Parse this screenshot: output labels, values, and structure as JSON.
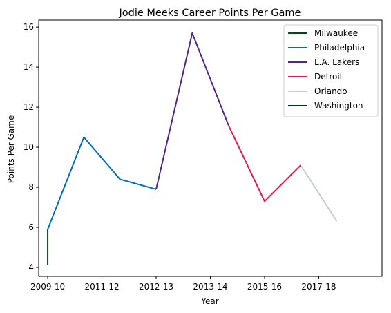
{
  "chart_data": {
    "type": "line",
    "title": "Jodie Meeks Career Points Per Game",
    "xlabel": "Year",
    "ylabel": "Points Per Game",
    "xlim": [
      -0.25,
      9.25
    ],
    "ylim": [
      3.55,
      16.35
    ],
    "x_ticks": [
      {
        "x": 0,
        "label": "2009-10"
      },
      {
        "x": 1.5,
        "label": "2011-12"
      },
      {
        "x": 3,
        "label": "2012-13"
      },
      {
        "x": 4.5,
        "label": "2013-14"
      },
      {
        "x": 6,
        "label": "2015-16"
      },
      {
        "x": 7.5,
        "label": "2017-18"
      }
    ],
    "y_ticks": [
      4,
      6,
      8,
      10,
      12,
      14,
      16
    ],
    "grid": false,
    "legend_position": "top-right",
    "series": [
      {
        "name": "Milwaukee",
        "color": "#00471b",
        "points": [
          [
            0,
            4.1
          ],
          [
            0,
            5.9
          ]
        ]
      },
      {
        "name": "Philadelphia",
        "color": "#006bb6",
        "points": [
          [
            0,
            5.9
          ],
          [
            1,
            10.5
          ],
          [
            2,
            8.4
          ],
          [
            3,
            7.9
          ]
        ]
      },
      {
        "name": "L.A. Lakers",
        "color": "#552583",
        "points": [
          [
            3,
            7.9
          ],
          [
            4,
            15.7
          ],
          [
            5,
            11.1
          ]
        ]
      },
      {
        "name": "Detroit",
        "color": "#e31950",
        "points": [
          [
            5,
            11.1
          ],
          [
            6,
            7.3
          ],
          [
            7,
            9.1
          ]
        ]
      },
      {
        "name": "Orlando",
        "color": "#c4ced4",
        "points": [
          [
            7,
            9.1
          ],
          [
            8,
            6.3
          ]
        ]
      },
      {
        "name": "Washington",
        "color": "#002b5c",
        "points": []
      }
    ]
  }
}
